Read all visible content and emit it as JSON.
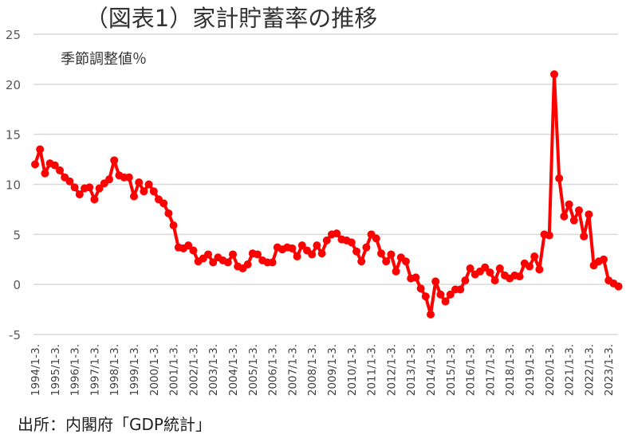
{
  "chart_data": {
    "type": "line",
    "title": "（図表1）家計貯蓄率の推移",
    "subtitle": "季節調整値％",
    "source": "出所：内閣府「GDP統計」",
    "xlabel": "",
    "ylabel": "",
    "ylim": [
      -5,
      25
    ],
    "yticks": [
      25,
      20,
      15,
      10,
      5,
      0,
      -5
    ],
    "grid": true,
    "legend": "none",
    "x_start": "1994Q1",
    "x_end": "2023Q3",
    "frequency": "quarterly",
    "xtick_labels": [
      "1994/1-3.",
      "1995/1-3.",
      "1996/1-3.",
      "1997/1-3.",
      "1998/1-3.",
      "1999/1-3.",
      "2000/1-3.",
      "2001/1-3.",
      "2002/1-3.",
      "2003/1-3.",
      "2004/1-3.",
      "2005/1-3.",
      "2006/1-3.",
      "2007/1-3.",
      "2008/1-3.",
      "2009/1-3.",
      "2010/1-3.",
      "2011/1-3.",
      "2012/1-3.",
      "2013/1-3.",
      "2014/1-3.",
      "2015/1-3.",
      "2016/1-3.",
      "2017/1-3.",
      "2018/1-3.",
      "2019/1-3.",
      "2020/1-3.",
      "2021/1-3.",
      "2022/1-3.",
      "2023/1-3."
    ],
    "series": [
      {
        "name": "家計貯蓄率",
        "color": "#ff0000",
        "values": [
          12.0,
          13.5,
          11.1,
          12.1,
          11.9,
          11.4,
          10.7,
          10.3,
          9.7,
          9.0,
          9.6,
          9.7,
          8.5,
          9.6,
          10.1,
          10.5,
          12.4,
          10.9,
          10.7,
          10.7,
          8.8,
          10.2,
          9.3,
          10.0,
          9.3,
          8.5,
          8.1,
          7.1,
          5.9,
          3.7,
          3.6,
          3.9,
          3.4,
          2.3,
          2.6,
          3.0,
          2.2,
          2.7,
          2.4,
          2.2,
          3.0,
          1.8,
          1.6,
          2.0,
          3.1,
          3.0,
          2.4,
          2.2,
          2.2,
          3.7,
          3.5,
          3.7,
          3.6,
          2.8,
          3.9,
          3.4,
          3.0,
          3.9,
          3.1,
          4.4,
          5.0,
          5.1,
          4.5,
          4.4,
          4.2,
          3.3,
          2.3,
          3.7,
          5.0,
          4.6,
          3.1,
          2.3,
          3.0,
          1.3,
          2.7,
          2.3,
          0.6,
          0.7,
          -0.4,
          -1.2,
          -3.0,
          0.3,
          -1.0,
          -1.7,
          -1.0,
          -0.5,
          -0.5,
          0.4,
          1.6,
          1.0,
          1.3,
          1.7,
          1.2,
          0.4,
          1.6,
          0.9,
          0.6,
          0.9,
          0.8,
          2.1,
          1.8,
          2.8,
          1.5,
          5.0,
          4.9,
          21.0,
          10.6,
          6.8,
          8.0,
          6.4,
          7.4,
          4.8,
          7.0,
          1.9,
          2.3,
          2.5,
          0.4,
          0.1,
          -0.2
        ]
      }
    ]
  }
}
